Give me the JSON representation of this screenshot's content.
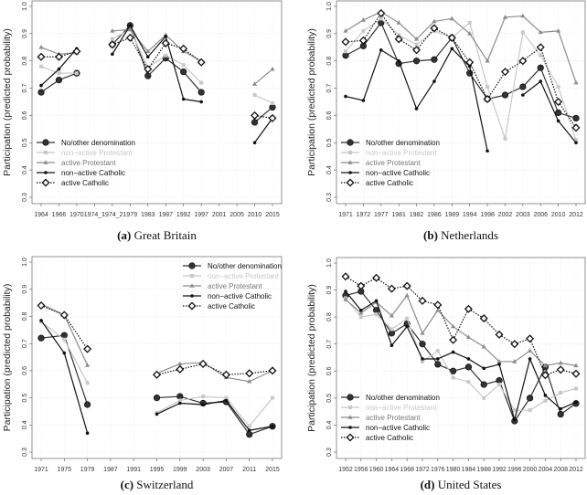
{
  "legend_entries": [
    "No/other denomination",
    "non−active Protestant",
    "active Protestant",
    "non−active Catholic",
    "active Catholic"
  ],
  "series_styles": [
    {
      "color": "#333333",
      "marker": "filled-circle",
      "dash": "solid"
    },
    {
      "color": "#c8c8c8",
      "marker": "square",
      "dash": "solid"
    },
    {
      "color": "#8c8c8c",
      "marker": "triangle",
      "dash": "solid"
    },
    {
      "color": "#111111",
      "marker": "small-dot",
      "dash": "solid"
    },
    {
      "color": "#111111",
      "marker": "open-diamond",
      "dash": "dotted"
    }
  ],
  "chart_data": [
    {
      "type": "line",
      "panel_label": "(a)",
      "title": "Great Britain",
      "ylabel": "Participation (predicted probability)",
      "ylim": [
        0.3,
        1.0
      ],
      "yticks": [
        0.3,
        0.4,
        0.5,
        0.6,
        0.7,
        0.8,
        0.9,
        1.0
      ],
      "grid": true,
      "legend": "bottom-left",
      "categories": [
        "1964",
        "1966",
        "1970",
        "1974_1",
        "1974_2",
        "1979",
        "1983",
        "1987",
        "1992",
        "1997",
        "2001",
        "2005",
        "2010",
        "2015"
      ],
      "series": [
        {
          "name": "No/other denomination",
          "values": [
            0.685,
            0.73,
            0.755,
            null,
            0.86,
            0.93,
            0.745,
            0.81,
            0.76,
            0.685,
            null,
            null,
            0.575,
            0.63
          ]
        },
        {
          "name": "non−active Protestant",
          "values": [
            0.78,
            0.755,
            0.755,
            null,
            0.88,
            0.915,
            0.775,
            0.82,
            0.785,
            0.72,
            null,
            null,
            0.675,
            0.645
          ]
        },
        {
          "name": "active Protestant",
          "values": [
            0.85,
            0.825,
            0.83,
            null,
            0.91,
            0.915,
            0.835,
            0.895,
            0.835,
            0.8,
            null,
            null,
            0.715,
            0.77
          ]
        },
        {
          "name": "non−active Catholic",
          "values": [
            0.71,
            0.77,
            0.845,
            null,
            0.825,
            0.93,
            0.815,
            0.89,
            0.66,
            0.65,
            null,
            null,
            0.5,
            0.59
          ]
        },
        {
          "name": "active Catholic",
          "values": [
            0.815,
            0.815,
            0.835,
            null,
            0.86,
            0.885,
            0.77,
            0.865,
            0.845,
            0.795,
            null,
            null,
            0.6,
            0.59
          ]
        }
      ]
    },
    {
      "type": "line",
      "panel_label": "(b)",
      "title": "Netherlands",
      "ylabel": "Participation (predicted probability)",
      "ylim": [
        0.3,
        1.0
      ],
      "yticks": [
        0.3,
        0.4,
        0.5,
        0.6,
        0.7,
        0.8,
        0.9,
        1.0
      ],
      "grid": true,
      "legend": "bottom-left",
      "categories": [
        "1971",
        "1972",
        "1977",
        "1981",
        "1982",
        "1986",
        "1989",
        "1994",
        "1998",
        "2002",
        "2003",
        "2006",
        "2010",
        "2012"
      ],
      "series": [
        {
          "name": "No/other denomination",
          "values": [
            0.82,
            0.855,
            0.94,
            0.79,
            0.8,
            0.805,
            0.885,
            0.755,
            0.66,
            0.675,
            0.705,
            0.775,
            0.61,
            0.59
          ]
        },
        {
          "name": "non−active Protestant",
          "values": [
            0.835,
            0.91,
            0.955,
            0.895,
            0.86,
            0.91,
            0.885,
            0.94,
            0.705,
            0.515,
            0.905,
            0.82,
            0.705,
            0.51
          ]
        },
        {
          "name": "active Protestant",
          "values": [
            0.91,
            0.95,
            0.98,
            0.94,
            0.88,
            0.945,
            0.955,
            0.9,
            0.8,
            0.96,
            0.965,
            0.905,
            0.91,
            0.72
          ]
        },
        {
          "name": "non−active Catholic",
          "values": [
            0.67,
            0.655,
            0.84,
            0.8,
            0.625,
            0.725,
            0.845,
            0.78,
            0.47,
            null,
            0.675,
            0.725,
            0.58,
            0.5
          ]
        },
        {
          "name": "active Catholic",
          "values": [
            0.87,
            0.875,
            0.975,
            0.88,
            0.84,
            0.92,
            0.885,
            0.795,
            0.66,
            0.76,
            0.8,
            0.85,
            0.65,
            0.555
          ]
        }
      ]
    },
    {
      "type": "line",
      "panel_label": "(c)",
      "title": "Switzerland",
      "ylabel": "Participation (predicted probability)",
      "ylim": [
        0.3,
        1.0
      ],
      "yticks": [
        0.3,
        0.4,
        0.5,
        0.6,
        0.7,
        0.8,
        0.9,
        1.0
      ],
      "grid": true,
      "legend": "top-right",
      "categories": [
        "1971",
        "1975",
        "1979",
        "1987",
        "1991",
        "1995",
        "1999",
        "2003",
        "2007",
        "2011",
        "2015"
      ],
      "series": [
        {
          "name": "No/other denomination",
          "values": [
            0.72,
            0.73,
            0.475,
            null,
            null,
            0.5,
            0.505,
            0.48,
            0.485,
            0.365,
            0.395
          ]
        },
        {
          "name": "non−active Protestant",
          "values": [
            0.78,
            0.715,
            0.555,
            null,
            null,
            0.445,
            0.49,
            0.505,
            0.5,
            0.395,
            0.5
          ]
        },
        {
          "name": "active Protestant",
          "values": [
            0.845,
            0.805,
            0.62,
            null,
            null,
            0.59,
            0.625,
            0.63,
            0.575,
            0.56,
            0.6
          ]
        },
        {
          "name": "non−active Catholic",
          "values": [
            0.785,
            0.665,
            0.37,
            null,
            null,
            0.44,
            0.48,
            0.475,
            0.49,
            0.38,
            0.395
          ]
        },
        {
          "name": "active Catholic",
          "values": [
            0.84,
            0.805,
            0.68,
            null,
            null,
            0.585,
            0.605,
            0.625,
            0.585,
            0.59,
            0.6
          ]
        }
      ]
    },
    {
      "type": "line",
      "panel_label": "(d)",
      "title": "United States",
      "ylabel": "Participation (predicted probability)",
      "ylim": [
        0.3,
        1.0
      ],
      "yticks": [
        0.3,
        0.4,
        0.5,
        0.6,
        0.7,
        0.8,
        0.9,
        1.0
      ],
      "grid": true,
      "legend": "bottom-left",
      "categories": [
        "1952",
        "1956",
        "1960",
        "1964",
        "1968",
        "1972",
        "1976",
        "1980",
        "1984",
        "1988",
        "1992",
        "1996",
        "2000",
        "2004",
        "2008",
        "2012"
      ],
      "series": [
        {
          "name": "No/other denomination",
          "values": [
            0.88,
            0.895,
            0.825,
            0.74,
            0.775,
            0.7,
            0.625,
            0.6,
            0.615,
            0.55,
            0.565,
            0.415,
            0.5,
            0.615,
            0.44,
            0.48
          ]
        },
        {
          "name": "non−active Protestant",
          "values": [
            0.87,
            0.8,
            0.81,
            0.755,
            0.795,
            0.635,
            0.675,
            0.575,
            0.56,
            0.5,
            0.55,
            0.455,
            0.455,
            0.49,
            0.52,
            0.535
          ]
        },
        {
          "name": "active Protestant",
          "values": [
            0.865,
            0.815,
            0.855,
            0.805,
            0.88,
            0.74,
            0.825,
            0.765,
            0.725,
            0.69,
            0.635,
            0.635,
            0.675,
            0.62,
            0.63,
            0.62
          ]
        },
        {
          "name": "non−active Catholic",
          "values": [
            0.895,
            0.825,
            0.86,
            0.695,
            0.765,
            0.645,
            0.645,
            0.67,
            0.645,
            0.61,
            0.625,
            0.42,
            0.645,
            0.51,
            0.46,
            0.485
          ]
        },
        {
          "name": "active Catholic",
          "values": [
            0.95,
            0.915,
            0.945,
            0.905,
            0.915,
            0.86,
            0.845,
            0.715,
            0.83,
            0.795,
            0.735,
            0.7,
            0.72,
            0.585,
            0.605,
            0.59
          ]
        }
      ]
    }
  ]
}
